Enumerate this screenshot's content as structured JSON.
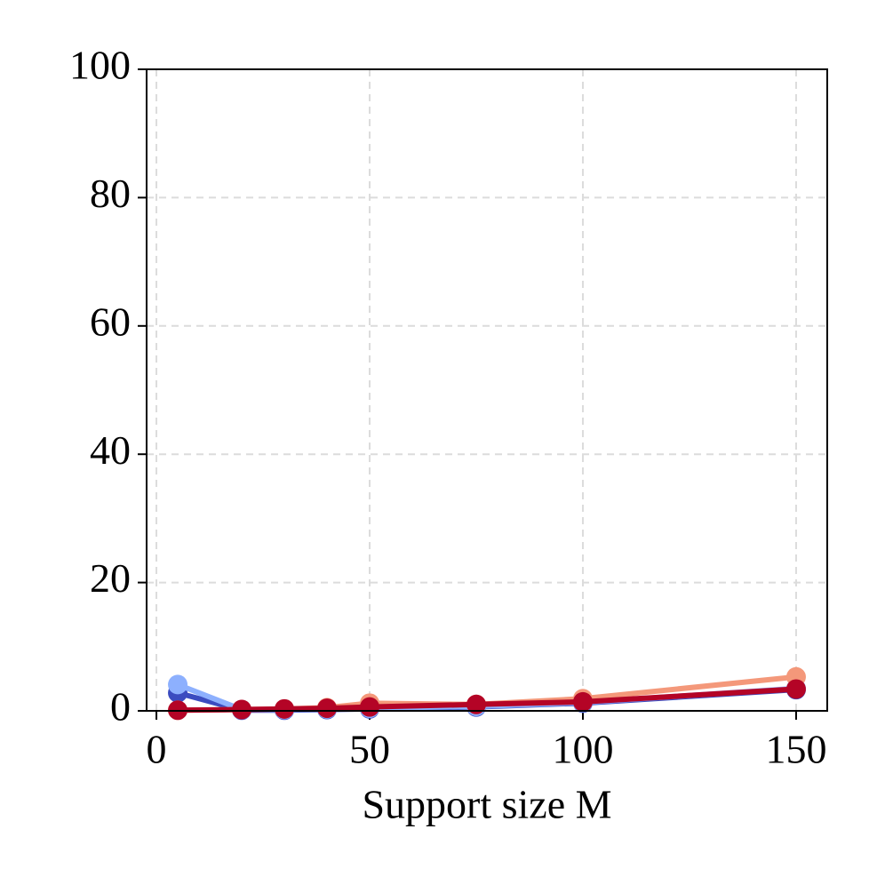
{
  "chart_data": {
    "type": "line",
    "xlabel": "Support size M",
    "x": [
      5,
      20,
      30,
      40,
      50,
      75,
      100,
      150
    ],
    "series": [
      {
        "color": "#3b4cc0",
        "values": [
          2.8,
          0.1,
          0.1,
          0.2,
          0.3,
          0.6,
          1.2,
          3.3
        ]
      },
      {
        "color": "#8db0fe",
        "values": [
          4.1,
          0.2,
          0.2,
          0.3,
          0.4,
          0.7,
          1.3,
          3.5
        ]
      },
      {
        "color": "#f4987a",
        "values": [
          0.1,
          0.2,
          0.3,
          0.5,
          1.2,
          1.0,
          1.9,
          5.3
        ]
      },
      {
        "color": "#b40426",
        "values": [
          0.1,
          0.2,
          0.3,
          0.4,
          0.6,
          1.0,
          1.4,
          3.4
        ]
      }
    ],
    "xlim": [
      -2.3,
      157.3
    ],
    "xticks": [
      0,
      50,
      100,
      150
    ],
    "ylim": [
      0,
      100
    ],
    "yticks": [
      0,
      20,
      40,
      60,
      80,
      100
    ],
    "grid": true
  }
}
